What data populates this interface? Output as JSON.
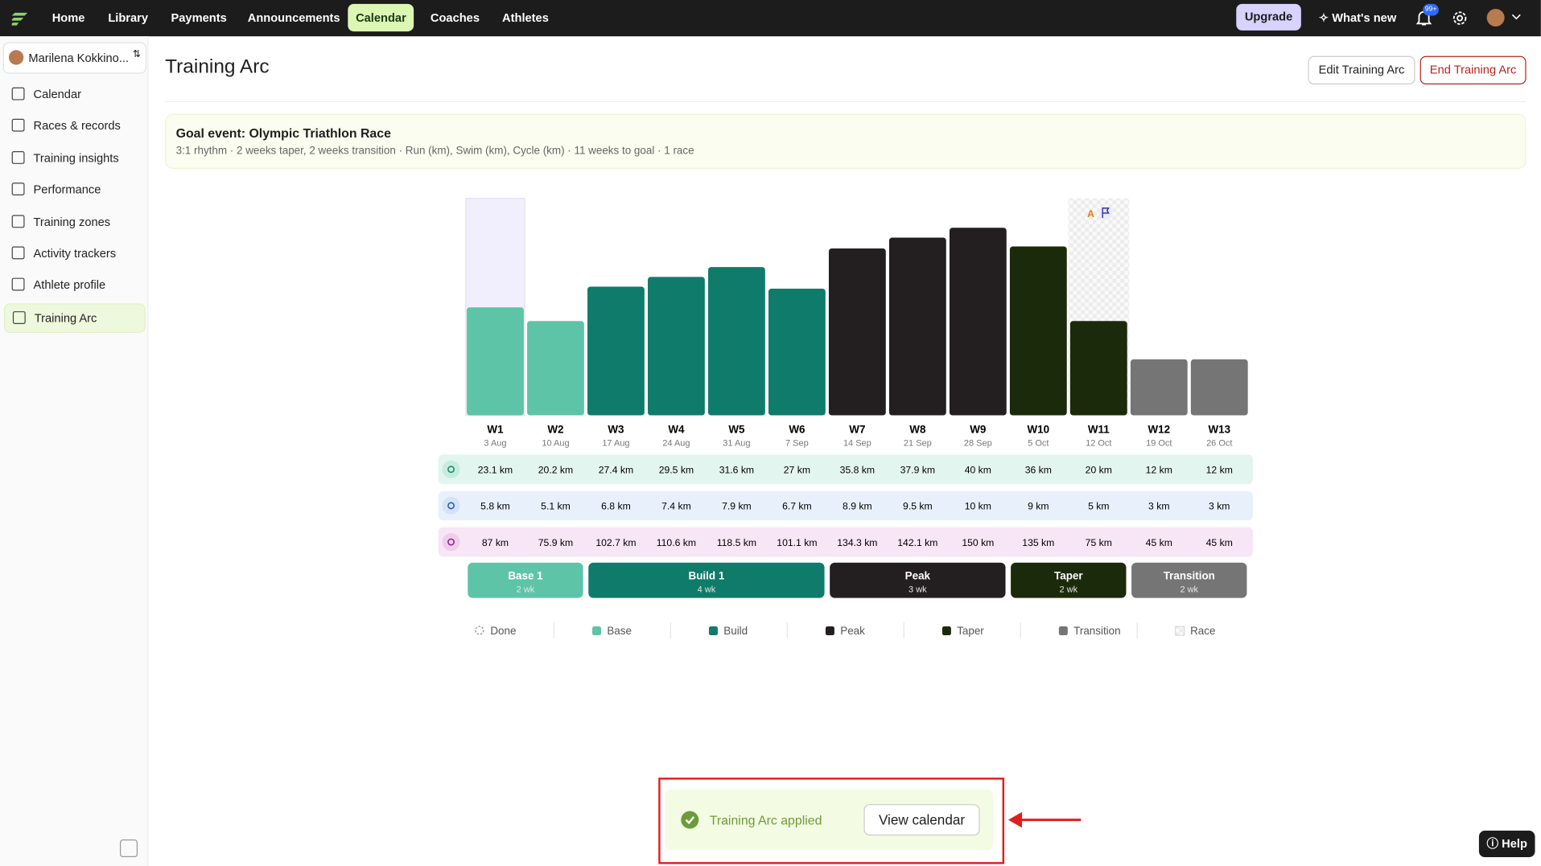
{
  "nav": {
    "items": [
      "Home",
      "Library",
      "Payments",
      "Announcements",
      "Calendar",
      "Coaches",
      "Athletes"
    ],
    "active": "Calendar",
    "upgrade": "Upgrade",
    "whats_new": "What's new",
    "badge": "99+"
  },
  "sidebar": {
    "user": "Marilena Kokkino...",
    "items": [
      "Calendar",
      "Races & records",
      "Training insights",
      "Performance",
      "Training zones",
      "Activity trackers",
      "Athlete profile",
      "Training Arc"
    ],
    "active": "Training Arc"
  },
  "header": {
    "title": "Training Arc",
    "edit": "Edit Training Arc",
    "end": "End Training Arc"
  },
  "goal": {
    "title": "Goal event: Olympic Triathlon Race",
    "subtitle": "3:1 rhythm · 2 weeks taper, 2 weeks transition · Run (km), Swim (km), Cycle (km) · 11 weeks to goal · 1 race"
  },
  "chart_data": {
    "type": "bar",
    "categories": [
      "W1",
      "W2",
      "W3",
      "W4",
      "W5",
      "W6",
      "W7",
      "W8",
      "W9",
      "W10",
      "W11",
      "W12",
      "W13"
    ],
    "dates": [
      "3 Aug",
      "10 Aug",
      "17 Aug",
      "24 Aug",
      "31 Aug",
      "7 Sep",
      "14 Sep",
      "21 Sep",
      "28 Sep",
      "5 Oct",
      "12 Oct",
      "19 Oct",
      "26 Oct"
    ],
    "values": [
      110,
      96,
      131,
      141,
      151,
      129,
      170,
      181,
      191,
      172,
      96,
      57,
      57
    ],
    "ylim": [
      0,
      221
    ],
    "current": "W1",
    "race": {
      "week": "W11",
      "priority": "A"
    },
    "distances": [
      {
        "sport": "run",
        "color": "#e3f5ef",
        "values": [
          "23.1 km",
          "20.2 km",
          "27.4 km",
          "29.5 km",
          "31.6 km",
          "27 km",
          "35.8 km",
          "37.9 km",
          "40 km",
          "36 km",
          "20 km",
          "12 km",
          "12 km"
        ]
      },
      {
        "sport": "swim",
        "color": "#e8f1fb",
        "values": [
          "5.8 km",
          "5.1 km",
          "6.8 km",
          "7.4 km",
          "7.9 km",
          "6.7 km",
          "8.9 km",
          "9.5 km",
          "10 km",
          "9 km",
          "5 km",
          "3 km",
          "3 km"
        ]
      },
      {
        "sport": "cycle",
        "color": "#f7e6f6",
        "values": [
          "87 km",
          "75.9 km",
          "102.7 km",
          "110.6 km",
          "118.5 km",
          "101.1 km",
          "134.3 km",
          "142.1 km",
          "150 km",
          "135 km",
          "75 km",
          "45 km",
          "45 km"
        ]
      }
    ],
    "phases": [
      {
        "name": "Base 1",
        "length": {
          "value": 2,
          "label": "2 wk"
        },
        "color": "#5ec4a8"
      },
      {
        "name": "Build 1",
        "length": {
          "value": 4,
          "label": "4 wk"
        },
        "color": "#0f7b6a"
      },
      {
        "name": "Peak",
        "length": {
          "value": 3,
          "label": "3 wk"
        },
        "color": "#231f20"
      },
      {
        "name": "Taper",
        "length": {
          "value": 2,
          "label": "2 wk"
        },
        "color": "#1b2a0a"
      },
      {
        "name": "Transition",
        "length": {
          "value": 2,
          "label": "2 wk"
        },
        "color": "#757575"
      }
    ],
    "legend": [
      {
        "name": "Done",
        "color": "done"
      },
      {
        "name": "Base",
        "color": "#5ec4a8"
      },
      {
        "name": "Build",
        "color": "#0f7b6a"
      },
      {
        "name": "Peak",
        "color": "#231f20"
      },
      {
        "name": "Taper",
        "color": "#1b2a0a"
      },
      {
        "name": "Transition",
        "color": "#757575"
      },
      {
        "name": "Race",
        "color": "race"
      }
    ]
  },
  "toast": {
    "message": "Training Arc applied",
    "action": "View calendar"
  },
  "help": "Help"
}
